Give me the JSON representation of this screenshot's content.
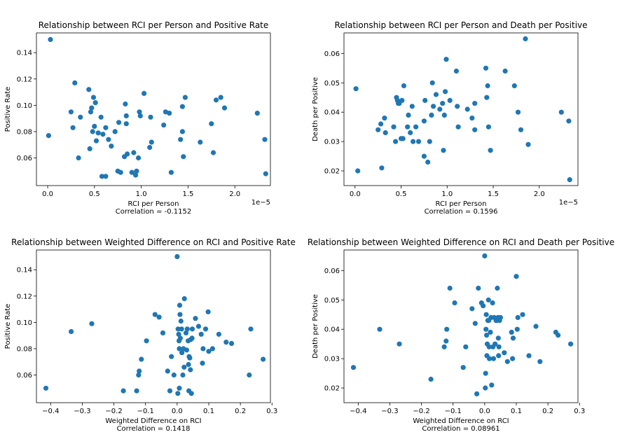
{
  "colors": {
    "marker": "#1f77b4",
    "axes": "#000000",
    "background": "#ffffff"
  },
  "chart_data": [
    {
      "type": "scatter",
      "title": "Relationship between RCI per Person and Positive Rate",
      "xlabel": "RCI per Person",
      "ylabel": "Positive Rate",
      "annotation": "Correlation = -0.1152",
      "offset_label": "1e−5",
      "xlim": [
        -0.12,
        2.38
      ],
      "ylim": [
        0.039,
        0.155
      ],
      "xticks": [
        0.0,
        0.5,
        1.0,
        1.5,
        2.0
      ],
      "xtick_labels": [
        "0.0",
        "0.5",
        "1.0",
        "1.5",
        "2.0"
      ],
      "yticks": [
        0.06,
        0.08,
        0.1,
        0.12,
        0.14
      ],
      "ytick_labels": [
        "0.06",
        "0.08",
        "0.10",
        "0.12",
        "0.14"
      ],
      "grid": false,
      "points": [
        [
          0.03,
          0.15
        ],
        [
          0.01,
          0.077
        ],
        [
          0.25,
          0.095
        ],
        [
          0.27,
          0.083
        ],
        [
          0.29,
          0.117
        ],
        [
          0.33,
          0.06
        ],
        [
          0.35,
          0.091
        ],
        [
          0.44,
          0.112
        ],
        [
          0.45,
          0.067
        ],
        [
          0.46,
          0.095
        ],
        [
          0.47,
          0.098
        ],
        [
          0.48,
          0.08
        ],
        [
          0.49,
          0.106
        ],
        [
          0.5,
          0.084
        ],
        [
          0.51,
          0.102
        ],
        [
          0.52,
          0.073
        ],
        [
          0.54,
          0.079
        ],
        [
          0.57,
          0.091
        ],
        [
          0.58,
          0.046
        ],
        [
          0.59,
          0.078
        ],
        [
          0.62,
          0.083
        ],
        [
          0.62,
          0.046
        ],
        [
          0.65,
          0.074
        ],
        [
          0.68,
          0.069
        ],
        [
          0.72,
          0.08
        ],
        [
          0.75,
          0.05
        ],
        [
          0.76,
          0.087
        ],
        [
          0.78,
          0.049
        ],
        [
          0.82,
          0.061
        ],
        [
          0.83,
          0.101
        ],
        [
          0.84,
          0.092
        ],
        [
          0.84,
          0.086
        ],
        [
          0.85,
          0.063
        ],
        [
          0.9,
          0.049
        ],
        [
          0.92,
          0.064
        ],
        [
          0.94,
          0.047
        ],
        [
          0.95,
          0.05
        ],
        [
          0.97,
          0.06
        ],
        [
          0.98,
          0.095
        ],
        [
          0.99,
          0.092
        ],
        [
          1.03,
          0.109
        ],
        [
          1.09,
          0.068
        ],
        [
          1.1,
          0.091
        ],
        [
          1.11,
          0.072
        ],
        [
          1.24,
          0.085
        ],
        [
          1.26,
          0.095
        ],
        [
          1.3,
          0.094
        ],
        [
          1.32,
          0.049
        ],
        [
          1.42,
          0.074
        ],
        [
          1.44,
          0.099
        ],
        [
          1.44,
          0.08
        ],
        [
          1.45,
          0.061
        ],
        [
          1.47,
          0.106
        ],
        [
          1.63,
          0.072
        ],
        [
          1.75,
          0.086
        ],
        [
          1.77,
          0.064
        ],
        [
          1.8,
          0.104
        ],
        [
          1.85,
          0.106
        ],
        [
          1.89,
          0.098
        ],
        [
          2.24,
          0.094
        ],
        [
          2.32,
          0.074
        ],
        [
          2.33,
          0.048
        ]
      ]
    },
    {
      "type": "scatter",
      "title": "Relationship between RCI per Person and Death per Positive",
      "xlabel": "RCI per Person",
      "ylabel": "Death per Positive",
      "annotation": "Correlation = 0.1596",
      "offset_label": "1e−5",
      "xlim": [
        -0.12,
        2.42
      ],
      "ylim": [
        0.015,
        0.067
      ],
      "xticks": [
        0.0,
        0.5,
        1.0,
        1.5,
        2.0
      ],
      "xtick_labels": [
        "0.0",
        "0.5",
        "1.0",
        "1.5",
        "2.0"
      ],
      "yticks": [
        0.02,
        0.03,
        0.04,
        0.05,
        0.06
      ],
      "ytick_labels": [
        "0.02",
        "0.03",
        "0.04",
        "0.05",
        "0.06"
      ],
      "grid": false,
      "points": [
        [
          0.01,
          0.048
        ],
        [
          0.03,
          0.02
        ],
        [
          0.25,
          0.034
        ],
        [
          0.28,
          0.036
        ],
        [
          0.29,
          0.021
        ],
        [
          0.32,
          0.038
        ],
        [
          0.33,
          0.033
        ],
        [
          0.42,
          0.035
        ],
        [
          0.44,
          0.03
        ],
        [
          0.45,
          0.045
        ],
        [
          0.46,
          0.044
        ],
        [
          0.47,
          0.043
        ],
        [
          0.48,
          0.043
        ],
        [
          0.5,
          0.031
        ],
        [
          0.51,
          0.044
        ],
        [
          0.52,
          0.031
        ],
        [
          0.53,
          0.049
        ],
        [
          0.57,
          0.035
        ],
        [
          0.58,
          0.039
        ],
        [
          0.6,
          0.033
        ],
        [
          0.62,
          0.042
        ],
        [
          0.63,
          0.03
        ],
        [
          0.66,
          0.035
        ],
        [
          0.69,
          0.03
        ],
        [
          0.75,
          0.025
        ],
        [
          0.75,
          0.037
        ],
        [
          0.76,
          0.044
        ],
        [
          0.79,
          0.023
        ],
        [
          0.81,
          0.03
        ],
        [
          0.83,
          0.039
        ],
        [
          0.84,
          0.05
        ],
        [
          0.85,
          0.042
        ],
        [
          0.88,
          0.046
        ],
        [
          0.92,
          0.041
        ],
        [
          0.95,
          0.043
        ],
        [
          0.96,
          0.027
        ],
        [
          0.97,
          0.039
        ],
        [
          0.98,
          0.047
        ],
        [
          0.99,
          0.058
        ],
        [
          1.03,
          0.044
        ],
        [
          1.1,
          0.054
        ],
        [
          1.11,
          0.042
        ],
        [
          1.12,
          0.035
        ],
        [
          1.22,
          0.041
        ],
        [
          1.27,
          0.038
        ],
        [
          1.3,
          0.034
        ],
        [
          1.3,
          0.043
        ],
        [
          1.42,
          0.055
        ],
        [
          1.43,
          0.045
        ],
        [
          1.44,
          0.049
        ],
        [
          1.45,
          0.035
        ],
        [
          1.47,
          0.027
        ],
        [
          1.63,
          0.054
        ],
        [
          1.73,
          0.049
        ],
        [
          1.77,
          0.04
        ],
        [
          1.8,
          0.034
        ],
        [
          1.85,
          0.065
        ],
        [
          1.88,
          0.029
        ],
        [
          2.24,
          0.04
        ],
        [
          2.32,
          0.037
        ],
        [
          2.33,
          0.017
        ]
      ]
    },
    {
      "type": "scatter",
      "title": "Relationship between Weighted Difference on RCI and Positive Rate",
      "xlabel": "Weighted Difference on RCI",
      "ylabel": "Positive Rate",
      "annotation": "Correlation = 0.1418",
      "xlim": [
        -0.445,
        0.295
      ],
      "ylim": [
        0.039,
        0.155
      ],
      "xticks": [
        -0.4,
        -0.3,
        -0.2,
        -0.1,
        0.0,
        0.1,
        0.2,
        0.3
      ],
      "xtick_labels": [
        "−0.4",
        "−0.3",
        "−0.2",
        "−0.1",
        "0.0",
        "0.1",
        "0.2",
        "0.3"
      ],
      "yticks": [
        0.06,
        0.08,
        0.1,
        0.12,
        0.14
      ],
      "ytick_labels": [
        "0.06",
        "0.08",
        "0.10",
        "0.12",
        "0.14"
      ],
      "grid": false,
      "points": [
        [
          -0.415,
          0.05
        ],
        [
          -0.335,
          0.093
        ],
        [
          -0.27,
          0.099
        ],
        [
          -0.17,
          0.048
        ],
        [
          -0.128,
          0.048
        ],
        [
          -0.122,
          0.06
        ],
        [
          -0.12,
          0.063
        ],
        [
          -0.113,
          0.072
        ],
        [
          -0.097,
          0.086
        ],
        [
          -0.07,
          0.106
        ],
        [
          -0.057,
          0.104
        ],
        [
          -0.045,
          0.092
        ],
        [
          -0.03,
          0.063
        ],
        [
          -0.023,
          0.048
        ],
        [
          -0.018,
          0.074
        ],
        [
          -0.01,
          0.06
        ],
        [
          0.0,
          0.15
        ],
        [
          0.002,
          0.046
        ],
        [
          0.003,
          0.095
        ],
        [
          0.005,
          0.091
        ],
        [
          0.006,
          0.086
        ],
        [
          0.007,
          0.08
        ],
        [
          0.007,
          0.05
        ],
        [
          0.008,
          0.113
        ],
        [
          0.009,
          0.106
        ],
        [
          0.01,
          0.088
        ],
        [
          0.012,
          0.101
        ],
        [
          0.014,
          0.095
        ],
        [
          0.015,
          0.077
        ],
        [
          0.018,
          0.06
        ],
        [
          0.02,
          0.08
        ],
        [
          0.022,
          0.066
        ],
        [
          0.023,
          0.118
        ],
        [
          0.028,
          0.092
        ],
        [
          0.03,
          0.079
        ],
        [
          0.032,
          0.095
        ],
        [
          0.035,
          0.086
        ],
        [
          0.036,
          0.068
        ],
        [
          0.037,
          0.048
        ],
        [
          0.038,
          0.074
        ],
        [
          0.04,
          0.073
        ],
        [
          0.042,
          0.064
        ],
        [
          0.043,
          0.087
        ],
        [
          0.045,
          0.046
        ],
        [
          0.047,
          0.088
        ],
        [
          0.048,
          0.095
        ],
        [
          0.058,
          0.103
        ],
        [
          0.068,
          0.097
        ],
        [
          0.076,
          0.091
        ],
        [
          0.08,
          0.069
        ],
        [
          0.082,
          0.08
        ],
        [
          0.09,
          0.095
        ],
        [
          0.098,
          0.108
        ],
        [
          0.1,
          0.078
        ],
        [
          0.112,
          0.08
        ],
        [
          0.132,
          0.091
        ],
        [
          0.155,
          0.085
        ],
        [
          0.172,
          0.084
        ],
        [
          0.228,
          0.06
        ],
        [
          0.233,
          0.095
        ],
        [
          0.272,
          0.072
        ]
      ]
    },
    {
      "type": "scatter",
      "title": "Relationship between Weighted Difference on RCI and Death per Positive",
      "xlabel": "Weighted Difference on RCI",
      "ylabel": "Death per Positive",
      "annotation": "Correlation = 0.08961",
      "xlim": [
        -0.445,
        0.295
      ],
      "ylim": [
        0.015,
        0.067
      ],
      "xticks": [
        -0.4,
        -0.3,
        -0.2,
        -0.1,
        0.0,
        0.1,
        0.2,
        0.3
      ],
      "xtick_labels": [
        "−0.4",
        "−0.3",
        "−0.2",
        "−0.1",
        "0.0",
        "0.1",
        "0.2",
        "0.3"
      ],
      "yticks": [
        0.02,
        0.03,
        0.04,
        0.05,
        0.06
      ],
      "ytick_labels": [
        "0.02",
        "0.03",
        "0.04",
        "0.05",
        "0.06"
      ],
      "grid": false,
      "points": [
        [
          -0.415,
          0.027
        ],
        [
          -0.332,
          0.04
        ],
        [
          -0.27,
          0.035
        ],
        [
          -0.17,
          0.023
        ],
        [
          -0.128,
          0.034
        ],
        [
          -0.122,
          0.036
        ],
        [
          -0.12,
          0.04
        ],
        [
          -0.11,
          0.054
        ],
        [
          -0.095,
          0.049
        ],
        [
          -0.068,
          0.027
        ],
        [
          -0.06,
          0.034
        ],
        [
          -0.04,
          0.047
        ],
        [
          -0.03,
          0.042
        ],
        [
          -0.025,
          0.018
        ],
        [
          -0.02,
          0.054
        ],
        [
          -0.01,
          0.049
        ],
        [
          -0.005,
          0.048
        ],
        [
          0.0,
          0.065
        ],
        [
          0.002,
          0.02
        ],
        [
          0.003,
          0.025
        ],
        [
          0.004,
          0.04
        ],
        [
          0.005,
          0.045
        ],
        [
          0.006,
          0.038
        ],
        [
          0.007,
          0.031
        ],
        [
          0.008,
          0.035
        ],
        [
          0.01,
          0.043
        ],
        [
          0.012,
          0.05
        ],
        [
          0.013,
          0.043
        ],
        [
          0.014,
          0.034
        ],
        [
          0.015,
          0.03
        ],
        [
          0.018,
          0.039
        ],
        [
          0.02,
          0.044
        ],
        [
          0.022,
          0.021
        ],
        [
          0.025,
          0.049
        ],
        [
          0.026,
          0.034
        ],
        [
          0.028,
          0.03
        ],
        [
          0.03,
          0.044
        ],
        [
          0.033,
          0.035
        ],
        [
          0.036,
          0.043
        ],
        [
          0.038,
          0.043
        ],
        [
          0.04,
          0.054
        ],
        [
          0.042,
          0.044
        ],
        [
          0.043,
          0.037
        ],
        [
          0.044,
          0.031
        ],
        [
          0.045,
          0.034
        ],
        [
          0.047,
          0.043
        ],
        [
          0.05,
          0.044
        ],
        [
          0.062,
          0.032
        ],
        [
          0.072,
          0.029
        ],
        [
          0.085,
          0.039
        ],
        [
          0.088,
          0.03
        ],
        [
          0.09,
          0.037
        ],
        [
          0.1,
          0.058
        ],
        [
          0.103,
          0.04
        ],
        [
          0.105,
          0.044
        ],
        [
          0.12,
          0.045
        ],
        [
          0.14,
          0.031
        ],
        [
          0.162,
          0.041
        ],
        [
          0.175,
          0.029
        ],
        [
          0.225,
          0.039
        ],
        [
          0.232,
          0.038
        ],
        [
          0.272,
          0.035
        ]
      ]
    }
  ]
}
